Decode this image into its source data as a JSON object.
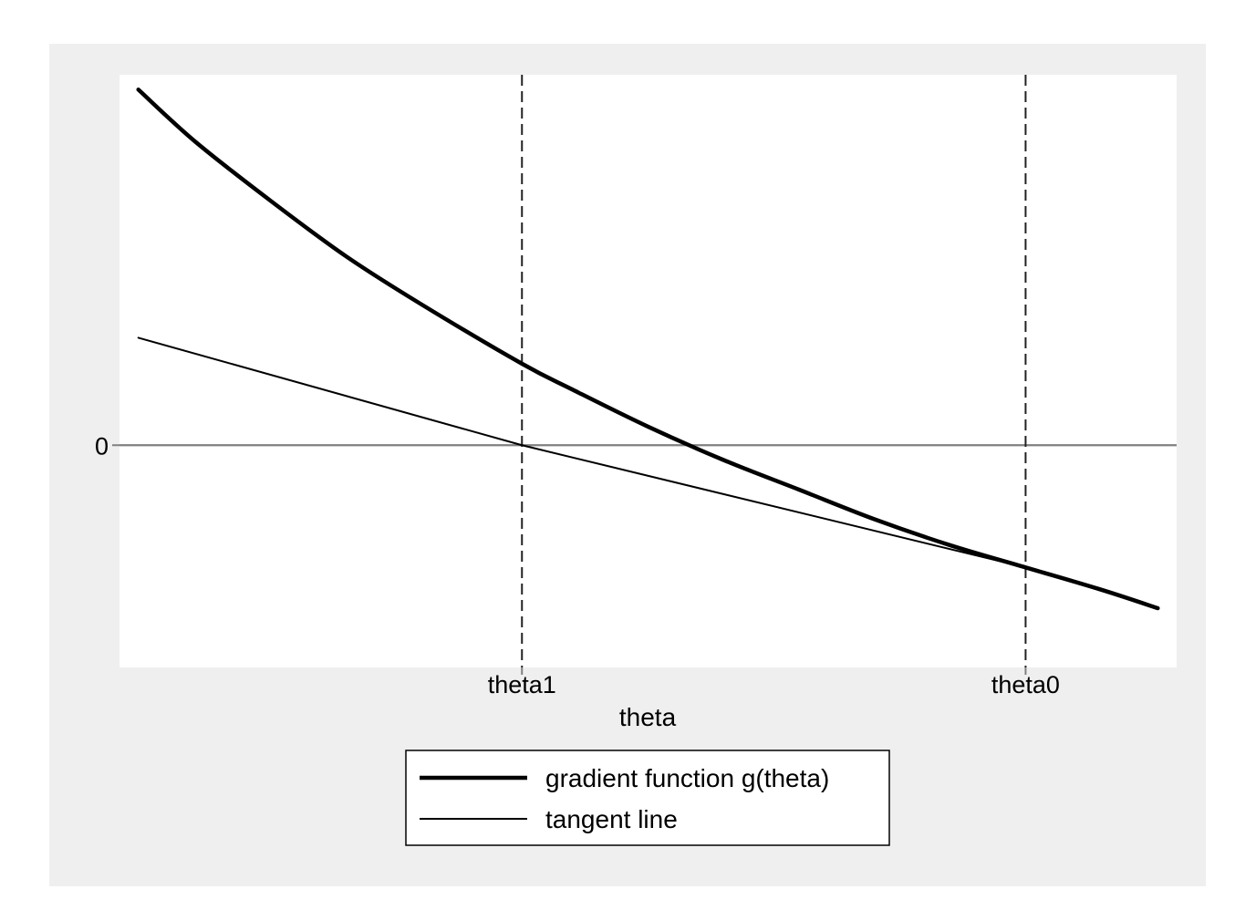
{
  "colors": {
    "outer_background": "#efefef",
    "plot_background": "#ffffff",
    "zero_line": "#808080",
    "curve": "#000000",
    "reference_line": "#222222"
  },
  "chart_data": {
    "type": "line",
    "title": "",
    "xlabel": "theta",
    "ylabel": "",
    "xlim": [
      -0.2,
      1.2
    ],
    "ylim": [
      -0.6,
      1.0
    ],
    "grid": false,
    "legend_position": "bottom",
    "x_ticks": [
      {
        "value": 0.333,
        "label": "theta1"
      },
      {
        "value": 1.0,
        "label": "theta0"
      }
    ],
    "y_ticks": [
      {
        "value": 0,
        "label": "0"
      }
    ],
    "reference_lines": [
      {
        "orientation": "horizontal",
        "value": 0,
        "style": "solid"
      },
      {
        "orientation": "vertical",
        "value": 0.333,
        "style": "dashed"
      },
      {
        "orientation": "vertical",
        "value": 1.0,
        "style": "dashed"
      }
    ],
    "series": [
      {
        "name": "gradient function g(theta)",
        "style": "thick",
        "x": [
          -0.175,
          -0.1,
          0.0,
          0.1,
          0.2,
          0.333,
          0.4,
          0.5,
          0.6,
          0.7,
          0.8,
          0.9,
          1.0,
          1.1,
          1.175
        ],
        "y": [
          0.96,
          0.82,
          0.66,
          0.51,
          0.38,
          0.22,
          0.15,
          0.05,
          -0.04,
          -0.12,
          -0.2,
          -0.27,
          -0.33,
          -0.39,
          -0.44
        ]
      },
      {
        "name": "tangent line",
        "style": "thin",
        "x": [
          -0.175,
          0.333,
          1.0,
          1.175
        ],
        "y": [
          0.29,
          0.0,
          -0.33,
          -0.44
        ]
      }
    ]
  }
}
